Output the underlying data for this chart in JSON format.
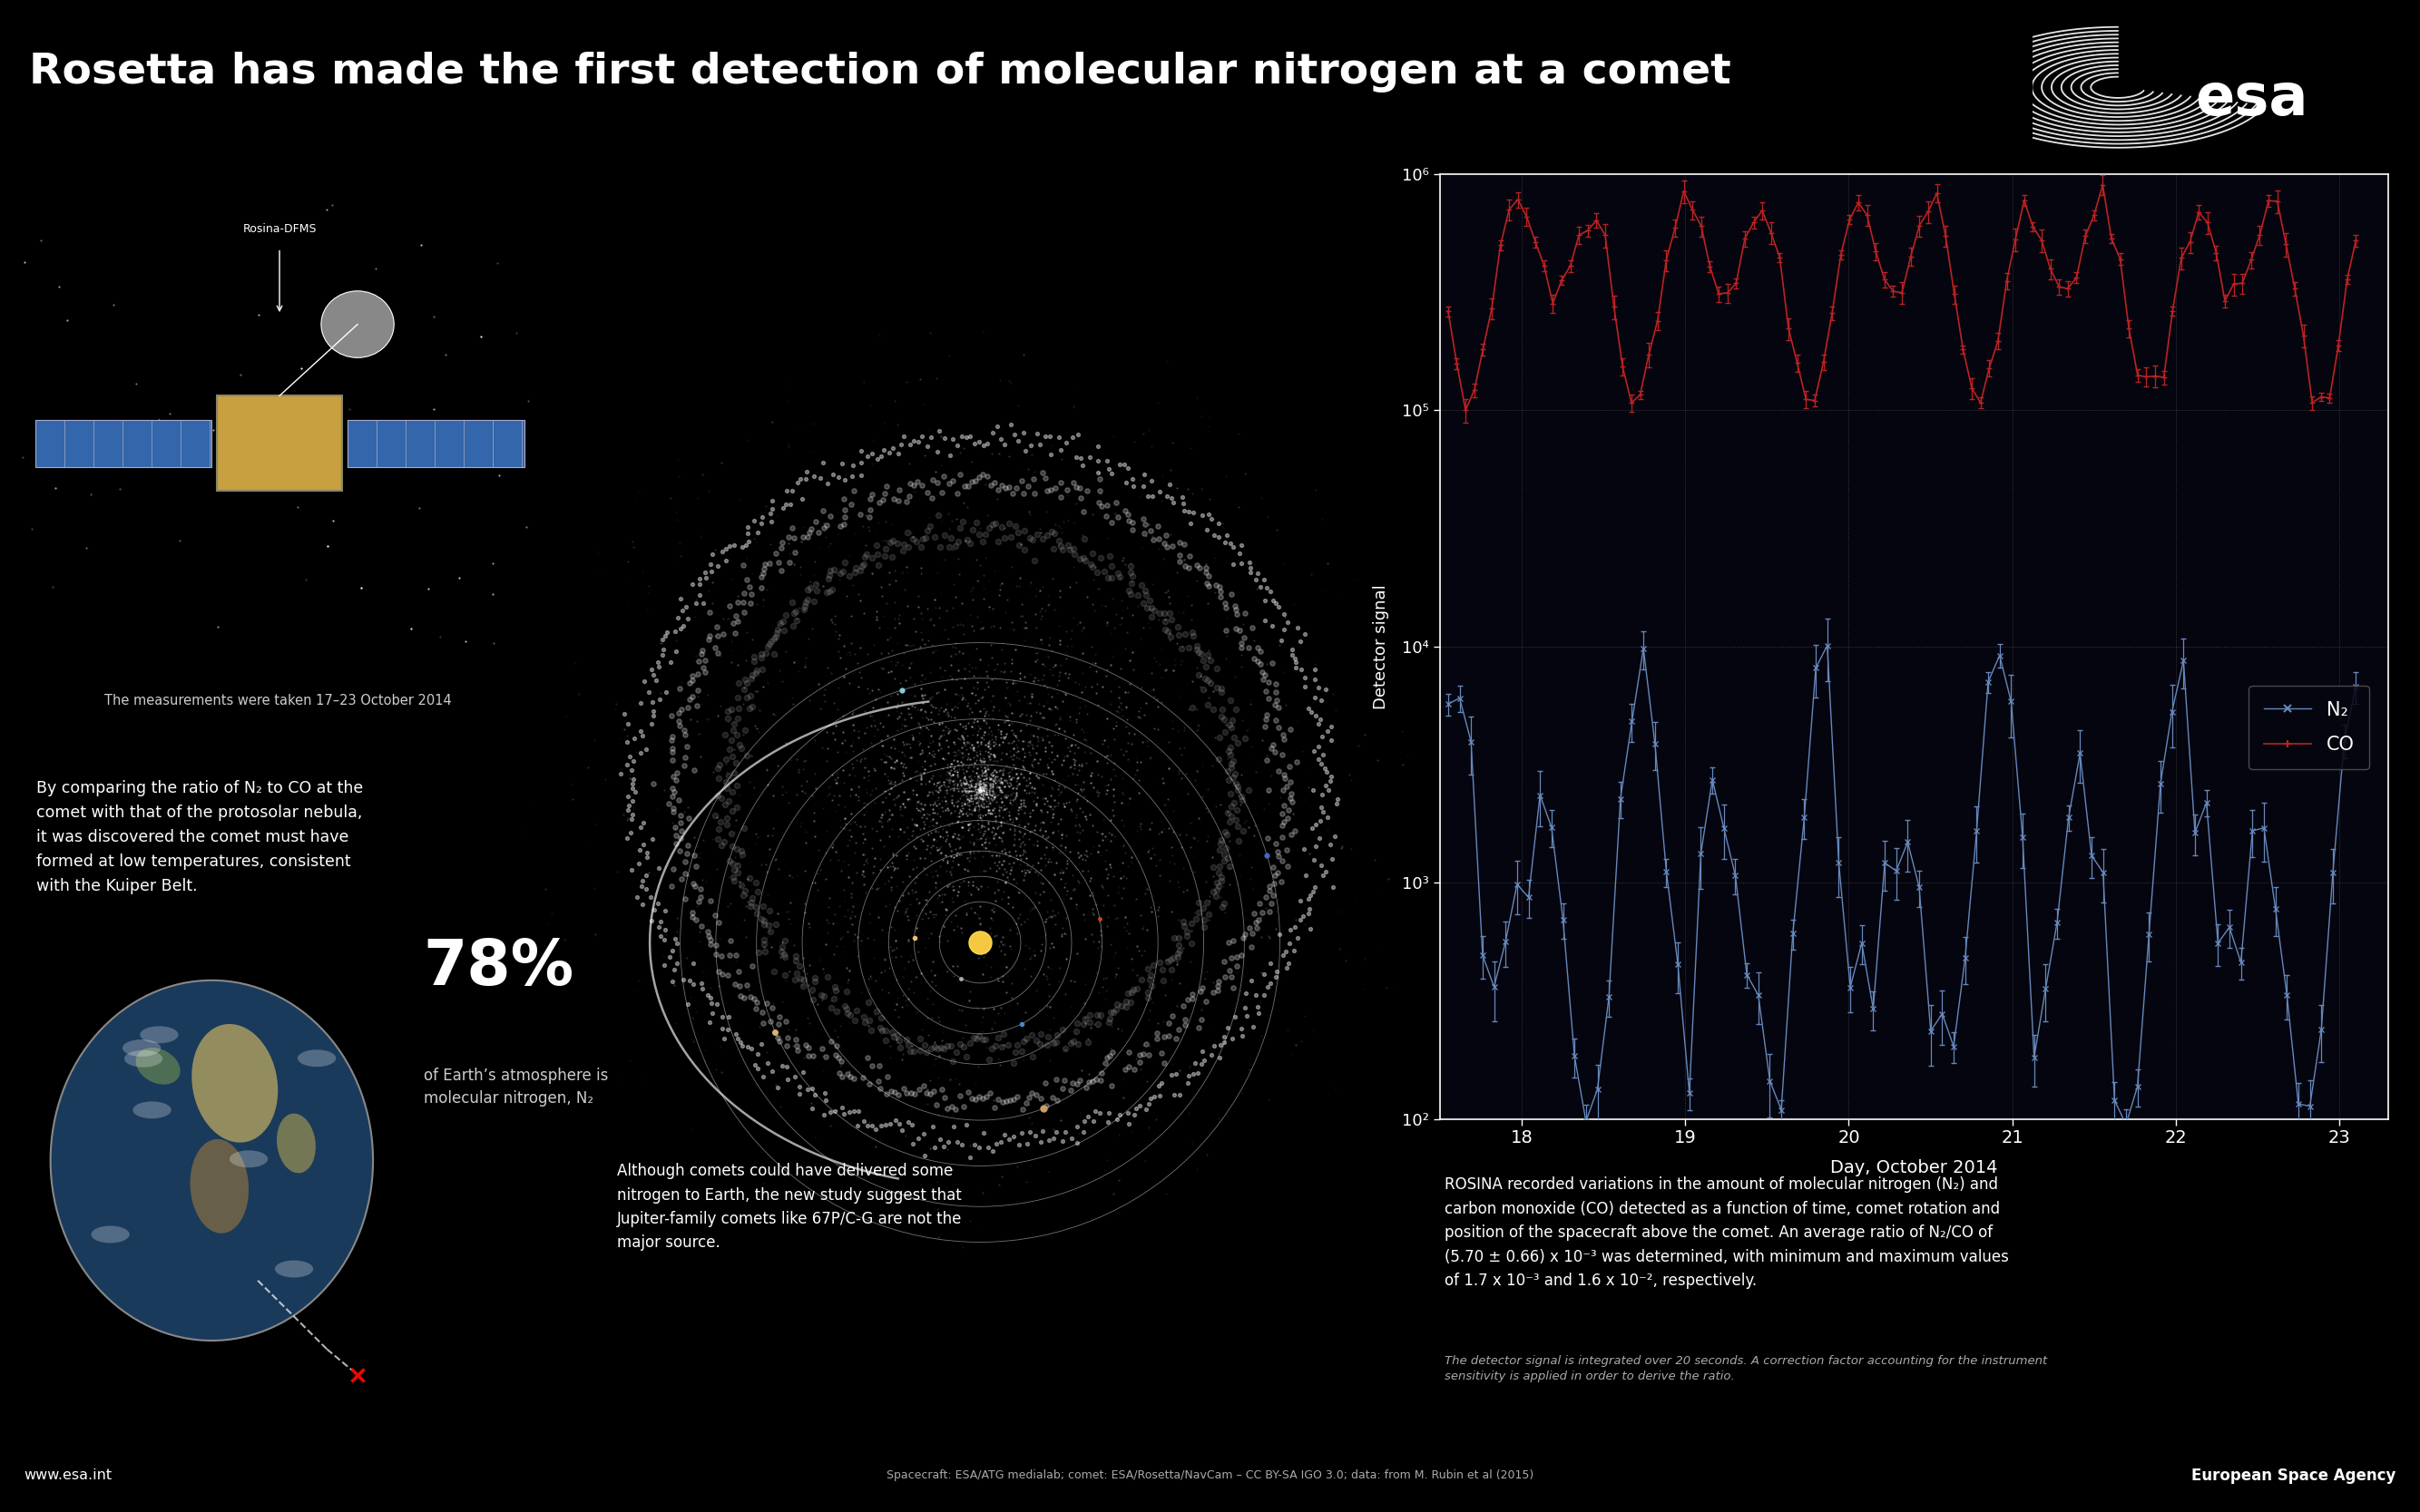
{
  "title": "Rosetta has made the first detection of molecular nitrogen at a comet",
  "bg_color": "#000000",
  "text_color": "#ffffff",
  "title_fontsize": 34,
  "xlabel": "Day, October 2014",
  "ylabel": "Detector signal",
  "xlim": [
    17.5,
    23.3
  ],
  "ylim_log": [
    2,
    6
  ],
  "xticks": [
    18,
    19,
    20,
    21,
    22,
    23
  ],
  "n2_color": "#6688bb",
  "co_color": "#bb2222",
  "text_rosina_label": "Rosina-DFMS",
  "text_measurements": "The measurements were taken 17–23 October 2014",
  "text_ratio": "By comparing the ratio of N₂ to CO at the\ncomet with that of the protosolar nebula,\nit was discovered the comet must have\nformed at low temperatures, consistent\nwith the Kuiper Belt.",
  "text_78": "78%",
  "text_78_sub": "of Earth’s atmosphere is\nmolecular nitrogen, N₂",
  "text_although": "Although comets could have delivered some\nnitrogen to Earth, the new study suggest that\nJupiter-family comets like 67P/C-G are not the\nmajor source.",
  "text_rosina": "ROSINA recorded variations in the amount of molecular nitrogen (N₂) and\ncarbon monoxide (CO) detected as a function of time, comet rotation and\nposition of the spacecraft above the comet. An average ratio of N₂/CO of\n(5.70 ± 0.66) x 10⁻³ was determined, with minimum and maximum values\nof 1.7 x 10⁻³ and 1.6 x 10⁻², respectively.",
  "text_detector_note": "The detector signal is integrated over 20 seconds. A correction factor accounting for the instrument\nsensitivity is applied in order to derive the ratio.",
  "text_credits": "Spacecraft: ESA/ATG medialab; comet: ESA/Rosetta/NavCam – CC BY-SA IGO 3.0; data: from M. Rubin et al (2015)",
  "text_esa_int": "www.esa.int",
  "text_european": "European Space Agency",
  "legend_n2": "N₂",
  "legend_co": "CO"
}
